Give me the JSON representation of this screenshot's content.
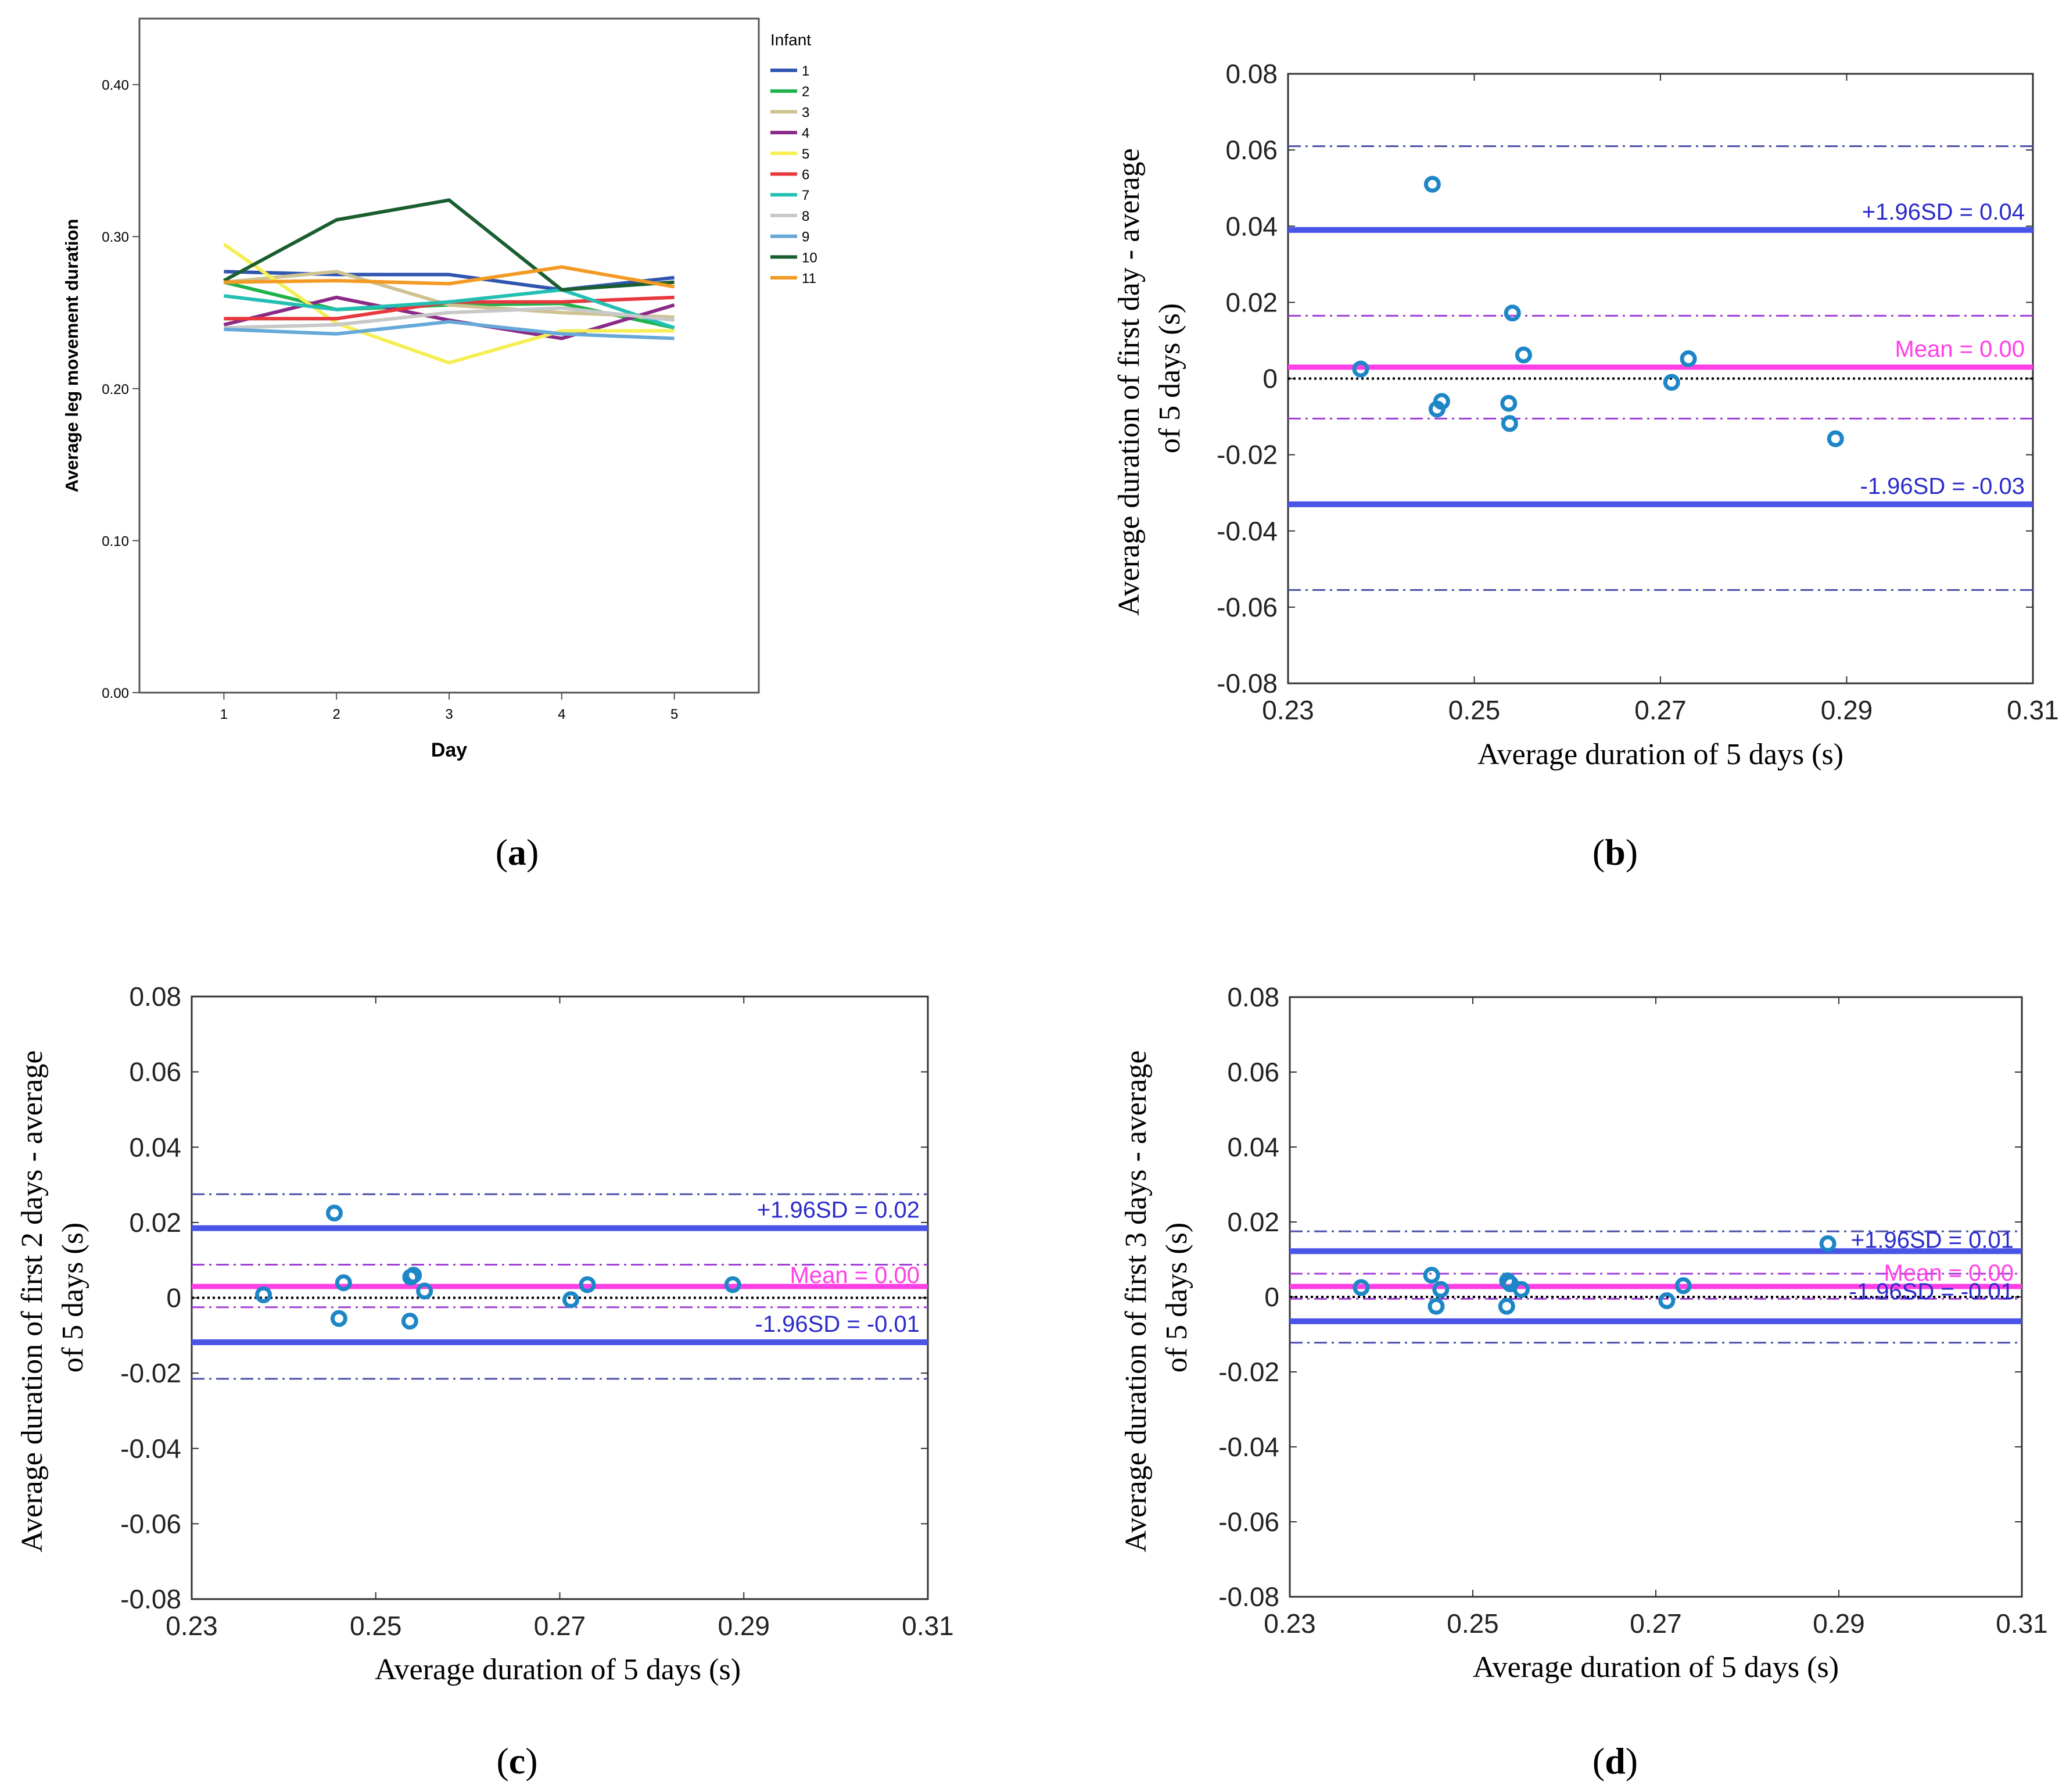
{
  "chart_data": [
    {
      "id": "a",
      "type": "line",
      "panel_label": "(a)",
      "panel_letter": "a",
      "xlabel": "Day",
      "ylabel": "Average leg movement duration",
      "xlim": [
        0.25,
        5.75
      ],
      "ylim": [
        0,
        0.4434
      ],
      "x_ticks": [
        1,
        2,
        3,
        4,
        5
      ],
      "x_tick_labels": [
        "1",
        "2",
        "3",
        "4",
        "5"
      ],
      "y_ticks": [
        0,
        0.1,
        0.2,
        0.3,
        0.4
      ],
      "y_tick_labels": [
        "0.00",
        "0.10",
        "0.20",
        "0.30",
        "0.40"
      ],
      "grid": false,
      "legend_title": "Infant",
      "legend_position": "right",
      "x": [
        1,
        2,
        3,
        4,
        5
      ],
      "series": [
        {
          "name": "1",
          "color": "#2f55b0",
          "values": [
            0.277,
            0.275,
            0.275,
            0.265,
            0.273
          ]
        },
        {
          "name": "2",
          "color": "#1fb24a",
          "values": [
            0.27,
            0.252,
            0.255,
            0.256,
            0.24
          ]
        },
        {
          "name": "3",
          "color": "#cfc291",
          "values": [
            0.27,
            0.277,
            0.255,
            0.25,
            0.247
          ]
        },
        {
          "name": "4",
          "color": "#8a2a86",
          "values": [
            0.242,
            0.26,
            0.245,
            0.233,
            0.255
          ]
        },
        {
          "name": "5",
          "color": "#f5ef55",
          "values": [
            0.295,
            0.243,
            0.217,
            0.238,
            0.238
          ]
        },
        {
          "name": "6",
          "color": "#e8383d",
          "values": [
            0.246,
            0.246,
            0.257,
            0.257,
            0.26
          ]
        },
        {
          "name": "7",
          "color": "#22bfb2",
          "values": [
            0.261,
            0.252,
            0.257,
            0.265,
            0.24
          ]
        },
        {
          "name": "8",
          "color": "#c8c8c8",
          "values": [
            0.24,
            0.242,
            0.25,
            0.253,
            0.245
          ]
        },
        {
          "name": "9",
          "color": "#66a8d8",
          "values": [
            0.239,
            0.236,
            0.244,
            0.236,
            0.233
          ]
        },
        {
          "name": "10",
          "color": "#1a5e30",
          "values": [
            0.271,
            0.311,
            0.324,
            0.265,
            0.27
          ]
        },
        {
          "name": "11",
          "color": "#f39a24",
          "values": [
            0.27,
            0.271,
            0.269,
            0.28,
            0.267
          ]
        }
      ]
    },
    {
      "id": "b",
      "type": "scatter",
      "panel_label": "(b)",
      "panel_letter": "b",
      "xlabel": "Average duration of 5 days (s)",
      "ylabel_lines": [
        "Average duration of first day - average",
        "of 5 days (s)"
      ],
      "xlim": [
        0.23,
        0.31
      ],
      "ylim": [
        -0.08,
        0.08
      ],
      "x_ticks": [
        0.23,
        0.25,
        0.27,
        0.29,
        0.31
      ],
      "x_tick_labels": [
        "0.23",
        "0.25",
        "0.27",
        "0.29",
        "0.31"
      ],
      "y_ticks": [
        -0.08,
        -0.06,
        -0.04,
        -0.02,
        0,
        0.02,
        0.04,
        0.06,
        0.08
      ],
      "y_tick_labels": [
        "-0.08",
        "-0.06",
        "-0.04",
        "-0.02",
        "0",
        "0.02",
        "0.04",
        "0.06",
        "0.08"
      ],
      "grid": false,
      "points": [
        {
          "x": 0.2378,
          "y": 0.0025
        },
        {
          "x": 0.2455,
          "y": 0.051
        },
        {
          "x": 0.246,
          "y": -0.008
        },
        {
          "x": 0.2465,
          "y": -0.006
        },
        {
          "x": 0.2537,
          "y": -0.0065
        },
        {
          "x": 0.2538,
          "y": -0.0118
        },
        {
          "x": 0.2541,
          "y": 0.0172
        },
        {
          "x": 0.2553,
          "y": 0.0062
        },
        {
          "x": 0.2712,
          "y": -0.001
        },
        {
          "x": 0.273,
          "y": 0.0052
        },
        {
          "x": 0.2888,
          "y": -0.0158
        }
      ],
      "mean": 0.003,
      "upper_loa": 0.039,
      "lower_loa": -0.033,
      "upper_ci": 0.061,
      "mean_ci_high": 0.0165,
      "mean_ci_low": -0.0105,
      "lower_ci": -0.0555,
      "annotations": {
        "upper": "+1.96SD = 0.04",
        "mean": "Mean = 0.00",
        "lower": "-1.96SD = -0.03"
      }
    },
    {
      "id": "c",
      "type": "scatter",
      "panel_label": "(c)",
      "panel_letter": "c",
      "xlabel": "Average duration of 5 days (s)",
      "ylabel_lines": [
        "Average duration of first 2 days - average",
        "of 5 days (s)"
      ],
      "xlim": [
        0.23,
        0.31
      ],
      "ylim": [
        -0.08,
        0.08
      ],
      "x_ticks": [
        0.23,
        0.25,
        0.27,
        0.29,
        0.31
      ],
      "x_tick_labels": [
        "0.23",
        "0.25",
        "0.27",
        "0.29",
        "0.31"
      ],
      "y_ticks": [
        -0.08,
        -0.06,
        -0.04,
        -0.02,
        0,
        0.02,
        0.04,
        0.06,
        0.08
      ],
      "y_tick_labels": [
        "-0.08",
        "-0.06",
        "-0.04",
        "-0.02",
        "0",
        "0.02",
        "0.04",
        "0.06",
        "0.08"
      ],
      "grid": false,
      "points": [
        {
          "x": 0.2378,
          "y": 0.0008
        },
        {
          "x": 0.2455,
          "y": 0.0225
        },
        {
          "x": 0.246,
          "y": -0.0055
        },
        {
          "x": 0.2465,
          "y": 0.004
        },
        {
          "x": 0.2537,
          "y": -0.0062
        },
        {
          "x": 0.2538,
          "y": 0.0055
        },
        {
          "x": 0.2541,
          "y": 0.006
        },
        {
          "x": 0.2553,
          "y": 0.0018
        },
        {
          "x": 0.2712,
          "y": -0.0005
        },
        {
          "x": 0.273,
          "y": 0.0035
        },
        {
          "x": 0.2888,
          "y": 0.0035
        }
      ],
      "mean": 0.003,
      "upper_loa": 0.0185,
      "lower_loa": -0.0118,
      "upper_ci": 0.0275,
      "mean_ci_high": 0.0088,
      "mean_ci_low": -0.0025,
      "lower_ci": -0.0215,
      "annotations": {
        "upper": "+1.96SD = 0.02",
        "mean": "Mean = 0.00",
        "lower": "-1.96SD = -0.01"
      }
    },
    {
      "id": "d",
      "type": "scatter",
      "panel_label": "(d)",
      "panel_letter": "d",
      "xlabel": "Average duration of 5 days (s)",
      "ylabel_lines": [
        "Average duration of first 3 days - average",
        "of 5 days (s)"
      ],
      "xlim": [
        0.23,
        0.31
      ],
      "ylim": [
        -0.08,
        0.08
      ],
      "x_ticks": [
        0.23,
        0.25,
        0.27,
        0.29,
        0.31
      ],
      "x_tick_labels": [
        "0.23",
        "0.25",
        "0.27",
        "0.29",
        "0.31"
      ],
      "y_ticks": [
        -0.08,
        -0.06,
        -0.04,
        -0.02,
        0,
        0.02,
        0.04,
        0.06,
        0.08
      ],
      "y_tick_labels": [
        "-0.08",
        "-0.06",
        "-0.04",
        "-0.02",
        "0",
        "0.02",
        "0.04",
        "0.06",
        "0.08"
      ],
      "grid": false,
      "points": [
        {
          "x": 0.2378,
          "y": 0.0025
        },
        {
          "x": 0.2455,
          "y": 0.0058
        },
        {
          "x": 0.246,
          "y": -0.0025
        },
        {
          "x": 0.2465,
          "y": 0.002
        },
        {
          "x": 0.2537,
          "y": -0.0025
        },
        {
          "x": 0.2538,
          "y": 0.0043
        },
        {
          "x": 0.2541,
          "y": 0.0035
        },
        {
          "x": 0.2553,
          "y": 0.002
        },
        {
          "x": 0.2712,
          "y": -0.001
        },
        {
          "x": 0.273,
          "y": 0.003
        },
        {
          "x": 0.2888,
          "y": 0.0142
        }
      ],
      "mean": 0.0028,
      "upper_loa": 0.0122,
      "lower_loa": -0.0065,
      "upper_ci": 0.0175,
      "mean_ci_high": 0.0062,
      "mean_ci_low": -0.0005,
      "lower_ci": -0.0122,
      "annotations": {
        "upper": "+1.96SD = 0.01",
        "mean": "Mean = 0.00",
        "lower": "-1.96SD = -0.01"
      }
    }
  ],
  "colors": {
    "loa_line": "#4a55e8",
    "mean_line": "#ff3fe6",
    "loa_text": "#2a2acb",
    "mean_text": "#ff3fe6",
    "ci_loa": "#4a4fa8",
    "ci_mean": "#a23ed6",
    "marker": "#1d86c6",
    "zero_line": "#000000",
    "axis": "#000000"
  }
}
